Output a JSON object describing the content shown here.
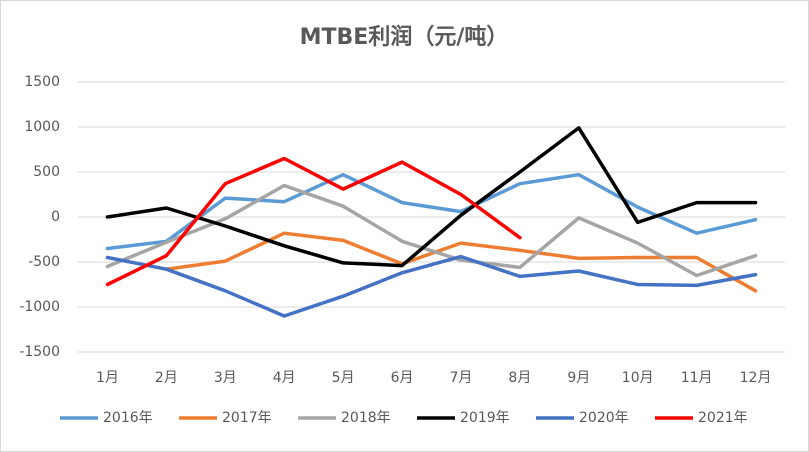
{
  "chart_data": {
    "type": "line",
    "title": "MTBE利润（元/吨）",
    "categories": [
      "1月",
      "2月",
      "3月",
      "4月",
      "5月",
      "6月",
      "7月",
      "8月",
      "9月",
      "10月",
      "11月",
      "12月"
    ],
    "series": [
      {
        "name": "2016年",
        "color": "#5b9bd5",
        "values": [
          -350,
          -270,
          210,
          170,
          470,
          160,
          60,
          370,
          470,
          110,
          -180,
          -30
        ]
      },
      {
        "name": "2017年",
        "color": "#ed7d31",
        "values": [
          null,
          -580,
          -490,
          -180,
          -260,
          -520,
          -290,
          -370,
          -460,
          -450,
          -450,
          -820
        ]
      },
      {
        "name": "2018年",
        "color": "#a5a5a5",
        "values": [
          -550,
          -280,
          -20,
          350,
          120,
          -270,
          -480,
          -560,
          -10,
          -290,
          -650,
          -430
        ]
      },
      {
        "name": "2019年",
        "color": "#000000",
        "values": [
          0,
          100,
          -100,
          -320,
          -510,
          -540,
          20,
          500,
          990,
          -60,
          160,
          160
        ]
      },
      {
        "name": "2020年",
        "color": "#4472c4",
        "values": [
          -450,
          -580,
          -820,
          -1100,
          -880,
          -620,
          -440,
          -660,
          -600,
          -750,
          -760,
          -640
        ]
      },
      {
        "name": "2021年",
        "color": "#ff0000",
        "values": [
          -750,
          -430,
          370,
          650,
          310,
          610,
          250,
          -230,
          null,
          null,
          null,
          null
        ]
      }
    ],
    "ylim": [
      -1500,
      1500
    ],
    "yticks": [
      -1500,
      -1000,
      -500,
      0,
      500,
      1000,
      1500
    ],
    "grid": true,
    "legend": "bottom"
  }
}
